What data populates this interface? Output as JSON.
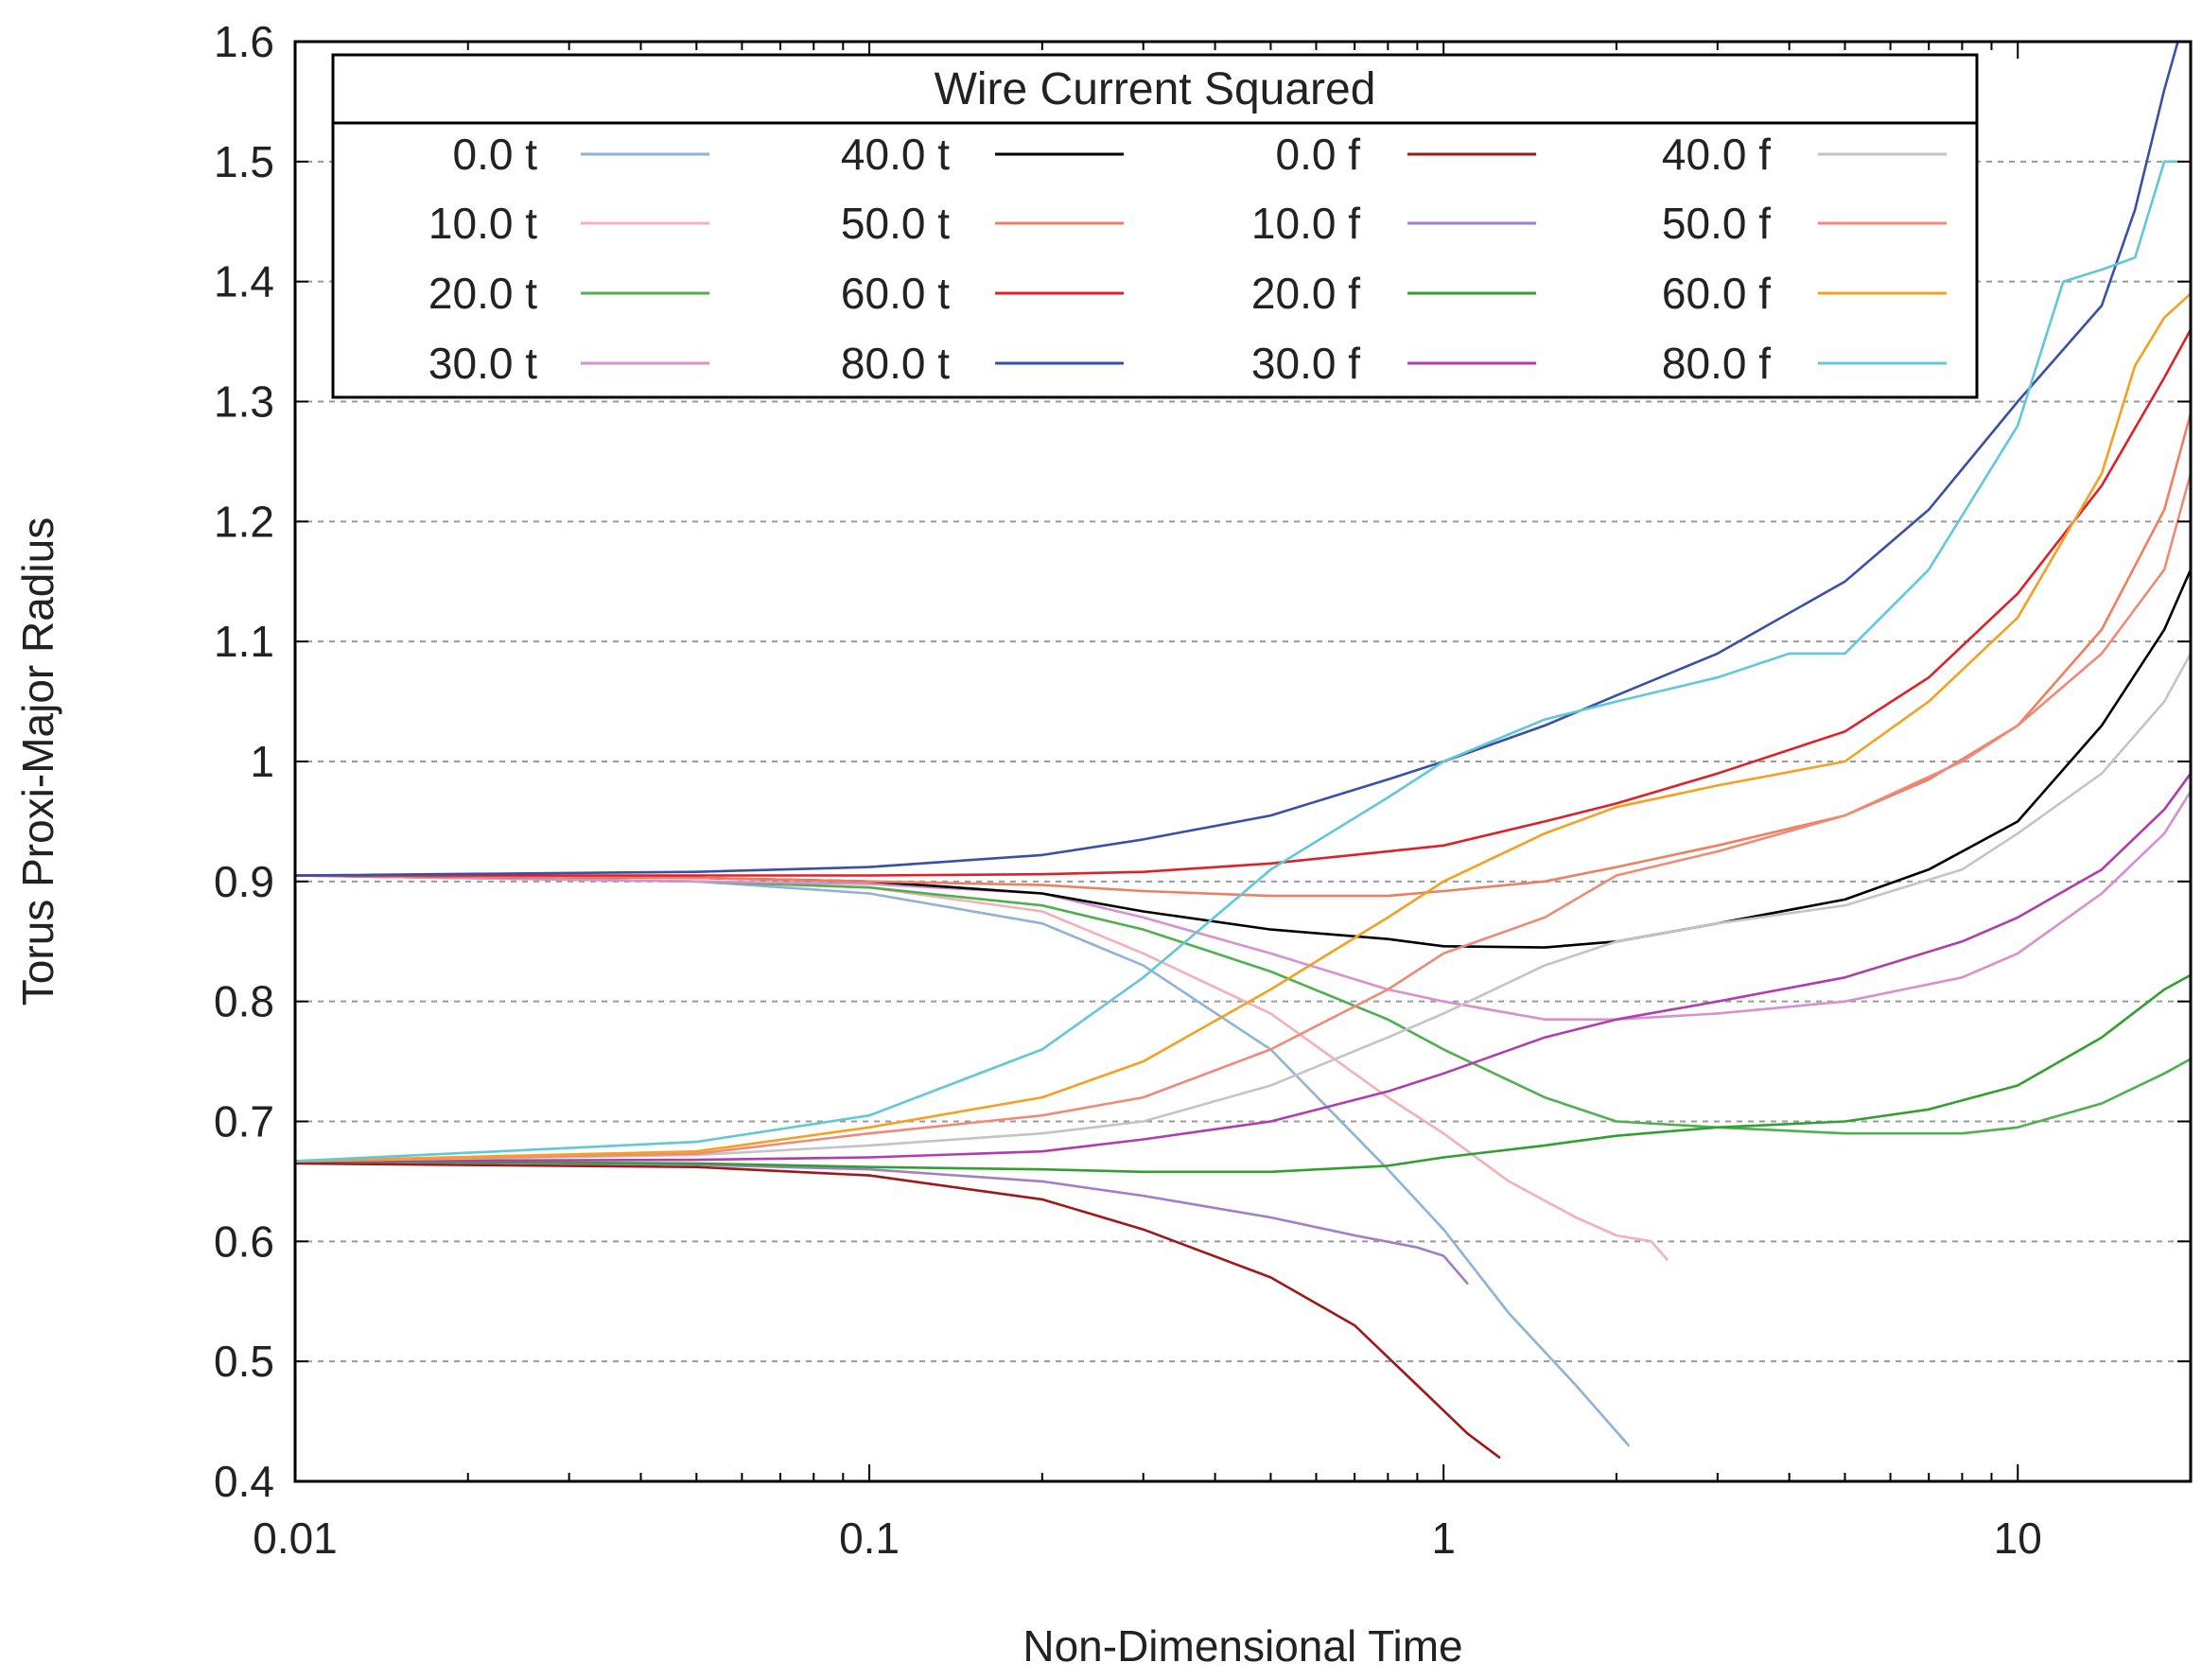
{
  "chart_data": {
    "type": "line",
    "title": "",
    "xlabel": "Non-Dimensional Time",
    "ylabel": "Torus Proxi-Major Radius",
    "xscale": "log",
    "xlim": [
      0.01,
      20
    ],
    "ylim": [
      0.4,
      1.6
    ],
    "grid": "horizontal-dashed",
    "x_ticks": [
      {
        "value": 0.01,
        "label": "0.01"
      },
      {
        "value": 0.1,
        "label": "0.1"
      },
      {
        "value": 1,
        "label": "1"
      },
      {
        "value": 10,
        "label": "10"
      }
    ],
    "y_ticks": [
      {
        "value": 0.4,
        "label": "0.4"
      },
      {
        "value": 0.5,
        "label": "0.5"
      },
      {
        "value": 0.6,
        "label": "0.6"
      },
      {
        "value": 0.7,
        "label": "0.7"
      },
      {
        "value": 0.8,
        "label": "0.8"
      },
      {
        "value": 0.9,
        "label": "0.9"
      },
      {
        "value": 1.0,
        "label": "1"
      },
      {
        "value": 1.1,
        "label": "1.1"
      },
      {
        "value": 1.2,
        "label": "1.2"
      },
      {
        "value": 1.3,
        "label": "1.3"
      },
      {
        "value": 1.4,
        "label": "1.4"
      },
      {
        "value": 1.5,
        "label": "1.5"
      },
      {
        "value": 1.6,
        "label": "1.6"
      }
    ],
    "legend": {
      "title": "Wire Current Squared",
      "placement": "top-left",
      "columns": 4
    },
    "series": [
      {
        "name": "0.0 t",
        "color": "#8fb2d6",
        "points": [
          [
            0.01,
            0.905
          ],
          [
            0.05,
            0.9
          ],
          [
            0.1,
            0.89
          ],
          [
            0.2,
            0.865
          ],
          [
            0.3,
            0.83
          ],
          [
            0.5,
            0.76
          ],
          [
            0.8,
            0.66
          ],
          [
            1.0,
            0.61
          ],
          [
            1.3,
            0.54
          ],
          [
            1.7,
            0.48
          ],
          [
            2.1,
            0.43
          ]
        ]
      },
      {
        "name": "10.0 t",
        "color": "#f4b0b8",
        "points": [
          [
            0.01,
            0.905
          ],
          [
            0.05,
            0.9
          ],
          [
            0.1,
            0.895
          ],
          [
            0.2,
            0.875
          ],
          [
            0.3,
            0.84
          ],
          [
            0.5,
            0.79
          ],
          [
            0.8,
            0.72
          ],
          [
            1.0,
            0.69
          ],
          [
            1.3,
            0.65
          ],
          [
            1.7,
            0.62
          ],
          [
            2.0,
            0.605
          ],
          [
            2.3,
            0.6
          ],
          [
            2.45,
            0.585
          ]
        ]
      },
      {
        "name": "20.0 t",
        "color": "#4fb04f",
        "points": [
          [
            0.01,
            0.905
          ],
          [
            0.05,
            0.9
          ],
          [
            0.1,
            0.895
          ],
          [
            0.2,
            0.88
          ],
          [
            0.3,
            0.86
          ],
          [
            0.5,
            0.825
          ],
          [
            0.8,
            0.785
          ],
          [
            1.0,
            0.76
          ],
          [
            1.5,
            0.72
          ],
          [
            2.0,
            0.7
          ],
          [
            3.0,
            0.695
          ],
          [
            5.0,
            0.69
          ],
          [
            8.0,
            0.69
          ],
          [
            10,
            0.695
          ],
          [
            14,
            0.715
          ],
          [
            18,
            0.74
          ],
          [
            20,
            0.752
          ]
        ]
      },
      {
        "name": "30.0 t",
        "color": "#d890cf",
        "points": [
          [
            0.01,
            0.905
          ],
          [
            0.05,
            0.9
          ],
          [
            0.1,
            0.898
          ],
          [
            0.2,
            0.89
          ],
          [
            0.3,
            0.87
          ],
          [
            0.5,
            0.84
          ],
          [
            0.8,
            0.81
          ],
          [
            1.0,
            0.8
          ],
          [
            1.5,
            0.785
          ],
          [
            2.0,
            0.785
          ],
          [
            3.0,
            0.79
          ],
          [
            5.0,
            0.8
          ],
          [
            8.0,
            0.82
          ],
          [
            10,
            0.84
          ],
          [
            14,
            0.89
          ],
          [
            18,
            0.94
          ],
          [
            20,
            0.975
          ]
        ]
      },
      {
        "name": "40.0 t",
        "color": "#000000",
        "points": [
          [
            0.01,
            0.905
          ],
          [
            0.05,
            0.903
          ],
          [
            0.1,
            0.9
          ],
          [
            0.2,
            0.89
          ],
          [
            0.3,
            0.875
          ],
          [
            0.5,
            0.86
          ],
          [
            0.8,
            0.852
          ],
          [
            1.0,
            0.846
          ],
          [
            1.5,
            0.845
          ],
          [
            2.0,
            0.85
          ],
          [
            3.0,
            0.865
          ],
          [
            5.0,
            0.885
          ],
          [
            7.0,
            0.91
          ],
          [
            10,
            0.95
          ],
          [
            14,
            1.03
          ],
          [
            18,
            1.11
          ],
          [
            20,
            1.16
          ]
        ]
      },
      {
        "name": "50.0 t",
        "color": "#f07f60",
        "points": [
          [
            0.01,
            0.905
          ],
          [
            0.05,
            0.903
          ],
          [
            0.1,
            0.9
          ],
          [
            0.2,
            0.897
          ],
          [
            0.3,
            0.892
          ],
          [
            0.5,
            0.888
          ],
          [
            0.8,
            0.888
          ],
          [
            1.0,
            0.892
          ],
          [
            1.5,
            0.9
          ],
          [
            2.0,
            0.912
          ],
          [
            3.0,
            0.93
          ],
          [
            5.0,
            0.955
          ],
          [
            7.0,
            0.985
          ],
          [
            10,
            1.03
          ],
          [
            14,
            1.11
          ],
          [
            18,
            1.21
          ],
          [
            20,
            1.29
          ]
        ]
      },
      {
        "name": "60.0 t",
        "color": "#e02028",
        "points": [
          [
            0.01,
            0.905
          ],
          [
            0.05,
            0.905
          ],
          [
            0.1,
            0.905
          ],
          [
            0.2,
            0.906
          ],
          [
            0.3,
            0.908
          ],
          [
            0.5,
            0.915
          ],
          [
            0.8,
            0.925
          ],
          [
            1.0,
            0.93
          ],
          [
            1.5,
            0.95
          ],
          [
            2.0,
            0.965
          ],
          [
            3.0,
            0.99
          ],
          [
            5.0,
            1.025
          ],
          [
            7.0,
            1.07
          ],
          [
            10,
            1.14
          ],
          [
            14,
            1.23
          ],
          [
            18,
            1.32
          ],
          [
            20,
            1.36
          ]
        ]
      },
      {
        "name": "80.0 t",
        "color": "#3850a8",
        "points": [
          [
            0.01,
            0.905
          ],
          [
            0.05,
            0.908
          ],
          [
            0.1,
            0.912
          ],
          [
            0.2,
            0.922
          ],
          [
            0.3,
            0.935
          ],
          [
            0.5,
            0.955
          ],
          [
            0.8,
            0.985
          ],
          [
            1.0,
            1.0
          ],
          [
            1.5,
            1.03
          ],
          [
            2.0,
            1.055
          ],
          [
            3.0,
            1.09
          ],
          [
            5.0,
            1.15
          ],
          [
            7.0,
            1.21
          ],
          [
            10,
            1.3
          ],
          [
            14,
            1.38
          ],
          [
            16,
            1.46
          ],
          [
            18,
            1.56
          ],
          [
            19,
            1.6
          ]
        ]
      },
      {
        "name": "0.0 f",
        "color": "#a01818",
        "points": [
          [
            0.01,
            0.665
          ],
          [
            0.05,
            0.662
          ],
          [
            0.1,
            0.655
          ],
          [
            0.2,
            0.635
          ],
          [
            0.3,
            0.61
          ],
          [
            0.5,
            0.57
          ],
          [
            0.7,
            0.53
          ],
          [
            0.9,
            0.48
          ],
          [
            1.1,
            0.44
          ],
          [
            1.25,
            0.42
          ]
        ]
      },
      {
        "name": "10.0 f",
        "color": "#a07ec8",
        "points": [
          [
            0.01,
            0.667
          ],
          [
            0.05,
            0.664
          ],
          [
            0.1,
            0.66
          ],
          [
            0.2,
            0.65
          ],
          [
            0.3,
            0.638
          ],
          [
            0.5,
            0.62
          ],
          [
            0.7,
            0.605
          ],
          [
            0.9,
            0.595
          ],
          [
            1.0,
            0.588
          ],
          [
            1.1,
            0.565
          ]
        ]
      },
      {
        "name": "20.0 f",
        "color": "#30a030",
        "points": [
          [
            0.01,
            0.667
          ],
          [
            0.05,
            0.665
          ],
          [
            0.1,
            0.662
          ],
          [
            0.2,
            0.66
          ],
          [
            0.3,
            0.658
          ],
          [
            0.5,
            0.658
          ],
          [
            0.8,
            0.663
          ],
          [
            1.0,
            0.67
          ],
          [
            1.5,
            0.68
          ],
          [
            2.0,
            0.688
          ],
          [
            3.0,
            0.695
          ],
          [
            5.0,
            0.7
          ],
          [
            7.0,
            0.71
          ],
          [
            10,
            0.73
          ],
          [
            14,
            0.77
          ],
          [
            18,
            0.81
          ],
          [
            20,
            0.822
          ]
        ]
      },
      {
        "name": "30.0 f",
        "color": "#b03cb0",
        "points": [
          [
            0.01,
            0.667
          ],
          [
            0.05,
            0.668
          ],
          [
            0.1,
            0.67
          ],
          [
            0.2,
            0.675
          ],
          [
            0.3,
            0.685
          ],
          [
            0.5,
            0.7
          ],
          [
            0.8,
            0.725
          ],
          [
            1.0,
            0.74
          ],
          [
            1.5,
            0.77
          ],
          [
            2.0,
            0.785
          ],
          [
            3.0,
            0.8
          ],
          [
            5.0,
            0.82
          ],
          [
            8.0,
            0.85
          ],
          [
            10,
            0.87
          ],
          [
            14,
            0.91
          ],
          [
            18,
            0.96
          ],
          [
            20,
            0.99
          ]
        ]
      },
      {
        "name": "40.0 f",
        "color": "#c4c4c4",
        "points": [
          [
            0.01,
            0.667
          ],
          [
            0.05,
            0.672
          ],
          [
            0.1,
            0.68
          ],
          [
            0.2,
            0.69
          ],
          [
            0.3,
            0.7
          ],
          [
            0.5,
            0.73
          ],
          [
            0.8,
            0.77
          ],
          [
            1.0,
            0.79
          ],
          [
            1.5,
            0.83
          ],
          [
            2.0,
            0.85
          ],
          [
            3.0,
            0.865
          ],
          [
            5.0,
            0.88
          ],
          [
            8.0,
            0.91
          ],
          [
            10,
            0.94
          ],
          [
            14,
            0.99
          ],
          [
            18,
            1.05
          ],
          [
            20,
            1.09
          ]
        ]
      },
      {
        "name": "50.0 f",
        "color": "#f08a78",
        "points": [
          [
            0.01,
            0.667
          ],
          [
            0.05,
            0.673
          ],
          [
            0.1,
            0.69
          ],
          [
            0.2,
            0.705
          ],
          [
            0.3,
            0.72
          ],
          [
            0.5,
            0.76
          ],
          [
            0.8,
            0.81
          ],
          [
            1.0,
            0.84
          ],
          [
            1.5,
            0.87
          ],
          [
            2.0,
            0.905
          ],
          [
            3.0,
            0.925
          ],
          [
            5.0,
            0.955
          ],
          [
            8.0,
            1.0
          ],
          [
            10,
            1.03
          ],
          [
            14,
            1.09
          ],
          [
            18,
            1.16
          ],
          [
            20,
            1.24
          ]
        ]
      },
      {
        "name": "60.0 f",
        "color": "#f5a020",
        "points": [
          [
            0.01,
            0.667
          ],
          [
            0.05,
            0.675
          ],
          [
            0.1,
            0.695
          ],
          [
            0.2,
            0.72
          ],
          [
            0.3,
            0.75
          ],
          [
            0.5,
            0.81
          ],
          [
            0.8,
            0.87
          ],
          [
            1.0,
            0.9
          ],
          [
            1.5,
            0.94
          ],
          [
            2.0,
            0.962
          ],
          [
            3.0,
            0.98
          ],
          [
            5.0,
            1.0
          ],
          [
            7.0,
            1.05
          ],
          [
            10,
            1.12
          ],
          [
            14,
            1.24
          ],
          [
            16,
            1.33
          ],
          [
            18,
            1.37
          ],
          [
            20,
            1.39
          ]
        ]
      },
      {
        "name": "80.0 f",
        "color": "#60c8d8",
        "points": [
          [
            0.01,
            0.667
          ],
          [
            0.05,
            0.683
          ],
          [
            0.1,
            0.705
          ],
          [
            0.2,
            0.76
          ],
          [
            0.3,
            0.82
          ],
          [
            0.5,
            0.91
          ],
          [
            0.8,
            0.97
          ],
          [
            1.0,
            1.0
          ],
          [
            1.5,
            1.035
          ],
          [
            2.0,
            1.05
          ],
          [
            3.0,
            1.07
          ],
          [
            4.0,
            1.09
          ],
          [
            5.0,
            1.09
          ],
          [
            7.0,
            1.16
          ],
          [
            10,
            1.28
          ],
          [
            12,
            1.4
          ],
          [
            14,
            1.41
          ],
          [
            16,
            1.42
          ],
          [
            18,
            1.5
          ],
          [
            19,
            1.5
          ]
        ]
      }
    ]
  }
}
